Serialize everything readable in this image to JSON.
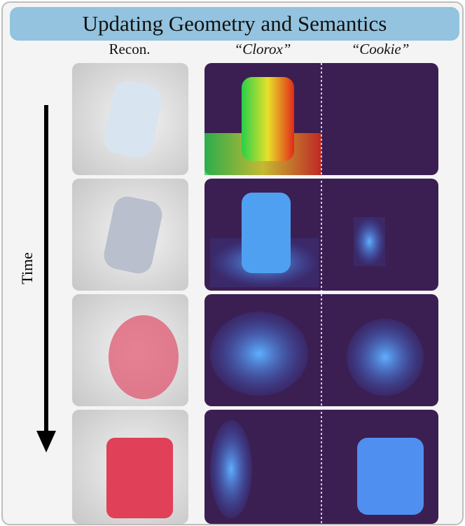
{
  "header": {
    "title": "Updating Geometry and Semantics"
  },
  "columns": [
    "Recon.",
    "“Clorox”",
    "“Cookie”"
  ],
  "time_label": "Time"
}
